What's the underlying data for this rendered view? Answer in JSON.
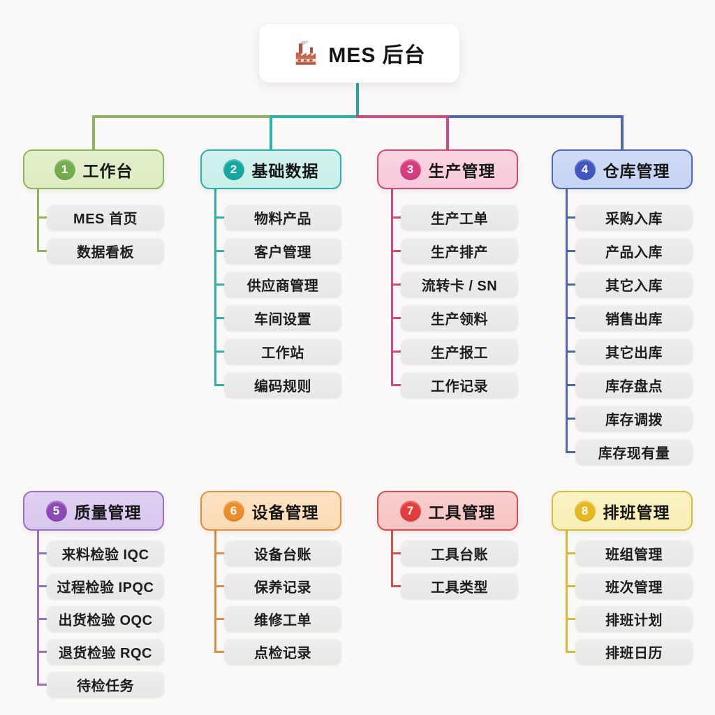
{
  "root": {
    "label": "MES 后台",
    "icon": "factory-icon"
  },
  "theme": {
    "background": "#faf9f7",
    "card_bg": "#ffffff",
    "pill_bg": "#ebeaea",
    "pill_text": "#1d1d1f",
    "root_connector": "#2aa49e"
  },
  "branches": [
    {
      "number": "1",
      "title": "工作台",
      "row": 0,
      "col": 0,
      "color": {
        "border": "#8fb65e",
        "fill": "#dcecc1",
        "badge": "#74ac4e"
      },
      "children": [
        "MES 首页",
        "数据看板"
      ]
    },
    {
      "number": "2",
      "title": "基础数据",
      "row": 0,
      "col": 1,
      "color": {
        "border": "#2cb0a8",
        "fill": "#c8efe9",
        "badge": "#14a8a0"
      },
      "children": [
        "物料产品",
        "客户管理",
        "供应商管理",
        "车间设置",
        "工作站",
        "编码规则"
      ]
    },
    {
      "number": "3",
      "title": "生产管理",
      "row": 0,
      "col": 2,
      "color": {
        "border": "#d04a7b",
        "fill": "#f8cadb",
        "badge": "#d63c80"
      },
      "children": [
        "生产工单",
        "生产排产",
        "流转卡 / SN",
        "生产领料",
        "生产报工",
        "工作记录"
      ]
    },
    {
      "number": "4",
      "title": "仓库管理",
      "row": 0,
      "col": 3,
      "color": {
        "border": "#4f68b5",
        "fill": "#c5d4f4",
        "badge": "#4156c0"
      },
      "children": [
        "采购入库",
        "产品入库",
        "其它入库",
        "销售出库",
        "其它出库",
        "库存盘点",
        "库存调拨",
        "库存现有量"
      ]
    },
    {
      "number": "5",
      "title": "质量管理",
      "row": 1,
      "col": 0,
      "color": {
        "border": "#9a70c4",
        "fill": "#d8c6ee",
        "badge": "#8a4bb8"
      },
      "children": [
        "来料检验 IQC",
        "过程检验 IPQC",
        "出货检验 OQC",
        "退货检验 RQC",
        "待检任务"
      ]
    },
    {
      "number": "6",
      "title": "设备管理",
      "row": 1,
      "col": 1,
      "color": {
        "border": "#e28d3f",
        "fill": "#fbdcb4",
        "badge": "#ec8d2d"
      },
      "children": [
        "设备台账",
        "保养记录",
        "维修工单",
        "点检记录"
      ]
    },
    {
      "number": "7",
      "title": "工具管理",
      "row": 1,
      "col": 2,
      "color": {
        "border": "#d94f4f",
        "fill": "#f6c3c3",
        "badge": "#e23c3c"
      },
      "children": [
        "工具台账",
        "工具类型"
      ]
    },
    {
      "number": "8",
      "title": "排班管理",
      "row": 1,
      "col": 3,
      "color": {
        "border": "#d8ba3e",
        "fill": "#f9efb6",
        "badge": "#e5b821"
      },
      "children": [
        "班组管理",
        "班次管理",
        "排班计划",
        "排班日历"
      ]
    }
  ]
}
